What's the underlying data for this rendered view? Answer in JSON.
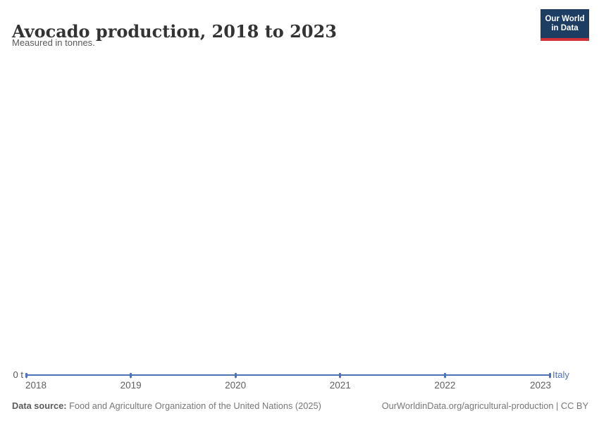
{
  "header": {
    "title": "Avocado production, 2018 to 2023",
    "subtitle": "Measured in tonnes."
  },
  "logo": {
    "line1": "Our World",
    "line2": "in Data",
    "bg_color": "#1d3d63",
    "accent_color": "#d13239"
  },
  "chart_data": {
    "type": "line",
    "title": "Avocado production, 2018 to 2023",
    "ylabel": "tonnes",
    "x": [
      2018,
      2019,
      2020,
      2021,
      2022,
      2023
    ],
    "series": [
      {
        "name": "Italy",
        "values": [
          0,
          0,
          0,
          0,
          0,
          0
        ],
        "color": "#4e72b8",
        "label_color": "#4e72b8"
      }
    ],
    "xlim": [
      2018,
      2023
    ],
    "ylim": [
      0,
      0
    ],
    "y_tick_label": "0 t",
    "grid": false,
    "legend": "end-of-line-label"
  },
  "footer": {
    "source_label": "Data source:",
    "source_text": " Food and Agriculture Organization of the United Nations (2025)",
    "link": "OurWorldinData.org/agricultural-production",
    "suffix": " | CC BY"
  }
}
